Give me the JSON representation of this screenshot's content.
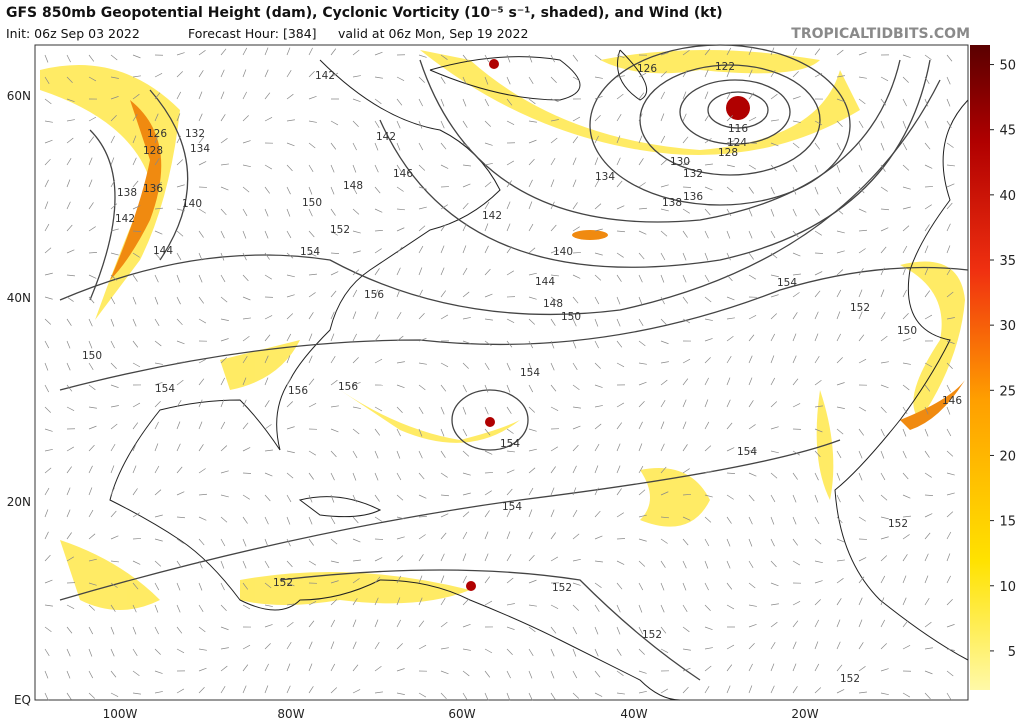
{
  "header": {
    "title": "GFS 850mb Geopotential Height (dam), Cyclonic Vorticity (10⁻⁵ s⁻¹, shaded), and Wind (kt)",
    "init": "Init: 06z Sep 03 2022",
    "forecast": "Forecast Hour: [384]",
    "valid": "valid at 06z Mon, Sep 19 2022",
    "site": "TROPICALTIDBITS.COM"
  },
  "map": {
    "lat_labels": [
      "60N",
      "40N",
      "20N",
      "EQ"
    ],
    "lon_labels": [
      "100W",
      "80W",
      "60W",
      "40W",
      "20W"
    ],
    "contour_labels": [
      "142",
      "126",
      "132",
      "134",
      "128",
      "138",
      "136",
      "140",
      "142",
      "144",
      "148",
      "146",
      "150",
      "152",
      "154",
      "156",
      "142",
      "142",
      "140",
      "144",
      "148",
      "150",
      "154",
      "152",
      "150",
      "146",
      "126",
      "122",
      "116",
      "124",
      "128",
      "130",
      "132",
      "134",
      "136",
      "138",
      "154",
      "156",
      "156",
      "154",
      "150",
      "154",
      "154",
      "154",
      "152",
      "152",
      "152",
      "152",
      "152"
    ]
  },
  "colorbar": {
    "range": [
      2,
      51.5
    ],
    "ticks": [
      5,
      10,
      15,
      20,
      25,
      30,
      35,
      40,
      45,
      50
    ]
  }
}
